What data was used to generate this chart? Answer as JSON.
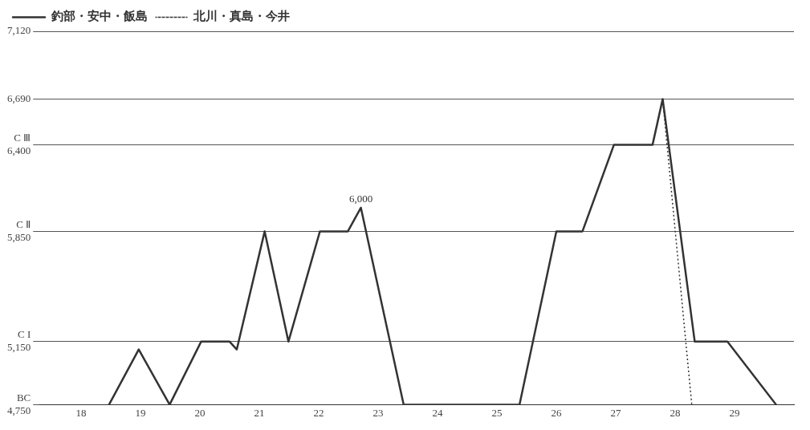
{
  "chart_data": {
    "type": "line",
    "legend": "top left",
    "grid": "y",
    "marker": "none",
    "xlim": [
      17.3,
      30
    ],
    "xticks": [
      18,
      19,
      20,
      21,
      22,
      23,
      24,
      25,
      26,
      27,
      28,
      29
    ],
    "ylim": [
      4750,
      7120
    ],
    "yticks": [
      {
        "value": 4750,
        "label": "BC\n4,750"
      },
      {
        "value": 5150,
        "label": "C I\n5,150"
      },
      {
        "value": 5850,
        "label": "C Ⅱ\n5,850"
      },
      {
        "value": 6400,
        "label": "C Ⅲ\n6,400"
      },
      {
        "value": 6690,
        "label": "6,690"
      },
      {
        "value": 7120,
        "label": "7,120"
      }
    ],
    "annotations": [
      {
        "text": "6,000",
        "x": 22.71,
        "y": 6000
      }
    ],
    "series": [
      {
        "name": "釣部・安中・飯島",
        "color": "#333333",
        "line_style": "solid",
        "x": [
          18.47,
          18.97,
          19.49,
          20.02,
          20.5,
          20.62,
          21.09,
          21.49,
          22.02,
          22.49,
          22.71,
          23.43,
          25.38,
          26.0,
          26.44,
          26.97,
          27.62,
          27.79,
          28.33,
          28.88,
          29.7
        ],
        "values": [
          4750,
          5100,
          4750,
          5150,
          5150,
          5100,
          5850,
          5150,
          5850,
          5850,
          6000,
          4750,
          4750,
          5850,
          5850,
          6400,
          6400,
          6690,
          5150,
          5150,
          4750
        ]
      },
      {
        "name": "北川・真島・今井",
        "color": "#333333",
        "line_style": "dotted",
        "x": [
          27.79,
          28.28
        ],
        "values": [
          6690,
          4750
        ]
      }
    ]
  }
}
